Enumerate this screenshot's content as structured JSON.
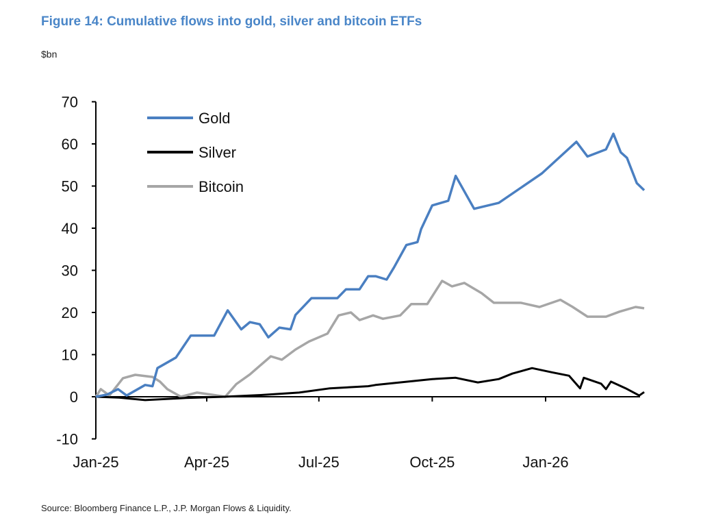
{
  "chart_data": {
    "type": "line",
    "title": "Figure 14: Cumulative flows into gold, silver and bitcoin ETFs",
    "ylabel": "$bn",
    "xlabel": "",
    "source": "Source: Bloomberg Finance L.P., J.P. Morgan Flows & Liquidity.",
    "ylim": [
      -10,
      70
    ],
    "yticks": [
      "-10",
      "0",
      "10",
      "20",
      "30",
      "40",
      "50",
      "60",
      "70"
    ],
    "xticks": [
      {
        "label": "Jan-25",
        "date": "2025-01-01"
      },
      {
        "label": "Apr-25",
        "date": "2025-04-01"
      },
      {
        "label": "Jul-25",
        "date": "2025-07-01"
      },
      {
        "label": "Oct-25",
        "date": "2025-10-01"
      },
      {
        "label": "Jan-26",
        "date": "2026-01-01"
      }
    ],
    "grid": false,
    "legend": "top-left",
    "series": [
      {
        "name": "Gold",
        "color": "#4a7fc1",
        "points": [
          [
            "2025-01-01",
            0
          ],
          [
            "2025-01-10",
            0.5
          ],
          [
            "2025-01-19",
            1.8
          ],
          [
            "2025-01-26",
            0.3
          ],
          [
            "2025-02-10",
            2.8
          ],
          [
            "2025-02-16",
            2.5
          ],
          [
            "2025-02-20",
            6.8
          ],
          [
            "2025-03-07",
            9.3
          ],
          [
            "2025-03-19",
            14.5
          ],
          [
            "2025-04-07",
            14.5
          ],
          [
            "2025-04-18",
            20.5
          ],
          [
            "2025-04-29",
            16
          ],
          [
            "2025-05-06",
            17.7
          ],
          [
            "2025-05-14",
            17.2
          ],
          [
            "2025-05-21",
            14.1
          ],
          [
            "2025-05-30",
            16.4
          ],
          [
            "2025-06-08",
            16
          ],
          [
            "2025-06-12",
            19.4
          ],
          [
            "2025-06-25",
            23.4
          ],
          [
            "2025-07-16",
            23.4
          ],
          [
            "2025-07-23",
            25.5
          ],
          [
            "2025-08-03",
            25.5
          ],
          [
            "2025-08-10",
            28.6
          ],
          [
            "2025-08-16",
            28.6
          ],
          [
            "2025-08-25",
            27.8
          ],
          [
            "2025-08-31",
            30.7
          ],
          [
            "2025-09-10",
            36
          ],
          [
            "2025-09-19",
            36.7
          ],
          [
            "2025-09-22",
            39.8
          ],
          [
            "2025-10-01",
            45.4
          ],
          [
            "2025-10-14",
            46.5
          ],
          [
            "2025-10-20",
            52.4
          ],
          [
            "2025-11-04",
            44.6
          ],
          [
            "2025-11-24",
            46
          ],
          [
            "2025-12-29",
            53
          ],
          [
            "2026-01-26",
            60.5
          ],
          [
            "2026-02-04",
            57
          ],
          [
            "2026-02-19",
            58.7
          ],
          [
            "2026-02-25",
            62.4
          ],
          [
            "2026-03-03",
            58
          ],
          [
            "2026-03-08",
            56.7
          ],
          [
            "2026-03-16",
            50.7
          ],
          [
            "2026-03-22",
            49
          ]
        ]
      },
      {
        "name": "Silver",
        "color": "#000000",
        "points": [
          [
            "2025-01-01",
            0
          ],
          [
            "2025-01-20",
            -0.2
          ],
          [
            "2025-02-10",
            -0.8
          ],
          [
            "2025-03-15",
            -0.3
          ],
          [
            "2025-04-15",
            0
          ],
          [
            "2025-05-15",
            0.4
          ],
          [
            "2025-06-15",
            1
          ],
          [
            "2025-07-10",
            2
          ],
          [
            "2025-08-10",
            2.5
          ],
          [
            "2025-08-16",
            2.8
          ],
          [
            "2025-10-01",
            4.2
          ],
          [
            "2025-10-20",
            4.5
          ],
          [
            "2025-11-07",
            3.4
          ],
          [
            "2025-11-24",
            4.2
          ],
          [
            "2025-12-05",
            5.5
          ],
          [
            "2025-12-21",
            6.8
          ],
          [
            "2026-01-06",
            5.8
          ],
          [
            "2026-01-20",
            5
          ],
          [
            "2026-01-29",
            2
          ],
          [
            "2026-02-01",
            4.5
          ],
          [
            "2026-02-15",
            3.1
          ],
          [
            "2026-02-19",
            1.8
          ],
          [
            "2026-02-23",
            3.6
          ],
          [
            "2026-03-07",
            2
          ],
          [
            "2026-03-18",
            0.3
          ],
          [
            "2026-03-22",
            1.1
          ]
        ]
      },
      {
        "name": "Bitcoin",
        "color": "#a6a6a6",
        "points": [
          [
            "2025-01-01",
            0
          ],
          [
            "2025-01-05",
            1.8
          ],
          [
            "2025-01-12",
            0.3
          ],
          [
            "2025-01-23",
            4.4
          ],
          [
            "2025-02-02",
            5.2
          ],
          [
            "2025-02-16",
            4.7
          ],
          [
            "2025-02-22",
            3.6
          ],
          [
            "2025-02-28",
            1.8
          ],
          [
            "2025-03-11",
            0
          ],
          [
            "2025-03-24",
            1
          ],
          [
            "2025-04-07",
            0.4
          ],
          [
            "2025-04-16",
            0
          ],
          [
            "2025-04-25",
            3
          ],
          [
            "2025-05-06",
            5.3
          ],
          [
            "2025-05-23",
            9.6
          ],
          [
            "2025-06-01",
            8.8
          ],
          [
            "2025-06-12",
            11.2
          ],
          [
            "2025-06-23",
            13.1
          ],
          [
            "2025-07-08",
            15
          ],
          [
            "2025-07-17",
            19.3
          ],
          [
            "2025-07-27",
            20
          ],
          [
            "2025-08-03",
            18.2
          ],
          [
            "2025-08-14",
            19.3
          ],
          [
            "2025-08-22",
            18.5
          ],
          [
            "2025-09-05",
            19.3
          ],
          [
            "2025-09-14",
            22
          ],
          [
            "2025-09-27",
            22
          ],
          [
            "2025-10-09",
            27.5
          ],
          [
            "2025-10-17",
            26.2
          ],
          [
            "2025-10-27",
            27
          ],
          [
            "2025-11-10",
            24.6
          ],
          [
            "2025-11-20",
            22.3
          ],
          [
            "2025-12-12",
            22.3
          ],
          [
            "2025-12-27",
            21.3
          ],
          [
            "2026-01-13",
            23
          ],
          [
            "2026-01-23",
            21.3
          ],
          [
            "2026-02-04",
            19
          ],
          [
            "2026-02-19",
            19
          ],
          [
            "2026-03-02",
            20.2
          ],
          [
            "2026-03-15",
            21.3
          ],
          [
            "2026-03-22",
            21
          ]
        ]
      }
    ]
  }
}
